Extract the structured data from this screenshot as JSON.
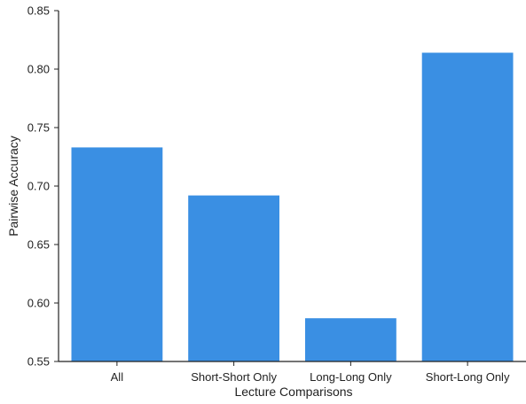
{
  "chart_data": {
    "type": "bar",
    "categories": [
      "All",
      "Short-Short Only",
      "Long-Long Only",
      "Short-Long Only"
    ],
    "values": [
      0.733,
      0.692,
      0.587,
      0.814
    ],
    "title": "",
    "xlabel": "Lecture Comparisons",
    "ylabel": "Pairwise Accuracy",
    "ylim": [
      0.55,
      0.85
    ],
    "yticks": [
      "0.55",
      "0.60",
      "0.65",
      "0.70",
      "0.75",
      "0.80",
      "0.85"
    ],
    "grid": false,
    "legend": "none",
    "bar_color": "#3a8fe3"
  }
}
